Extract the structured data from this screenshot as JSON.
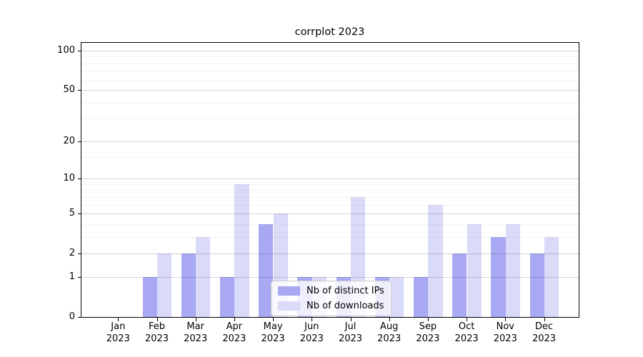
{
  "title": "corrplot 2023",
  "chart_data": {
    "type": "bar",
    "title": "corrplot 2023",
    "categories": [
      "Jan",
      "Feb",
      "Mar",
      "Apr",
      "May",
      "Jun",
      "Jul",
      "Aug",
      "Sep",
      "Oct",
      "Nov",
      "Dec"
    ],
    "year_label": "2023",
    "series": [
      {
        "name": "Nb of distinct IPs",
        "color": "#a8a8f3",
        "values": [
          0,
          1,
          2,
          1,
          4,
          1,
          1,
          1,
          1,
          2,
          3,
          2
        ]
      },
      {
        "name": "Nb of downloads",
        "color": "#dadaf9",
        "values": [
          0,
          2,
          3,
          9,
          5,
          1,
          7,
          1,
          6,
          4,
          4,
          3
        ]
      }
    ],
    "yticks": [
      0,
      1,
      2,
      5,
      10,
      20,
      50,
      100
    ],
    "yticks_minor": [
      3,
      4,
      6,
      7,
      8,
      9,
      15,
      30,
      40,
      60,
      70,
      80,
      90
    ],
    "yscale": "log10(1+y)",
    "ylim_top": 115,
    "grid": "on",
    "legend_position": "lower center"
  }
}
